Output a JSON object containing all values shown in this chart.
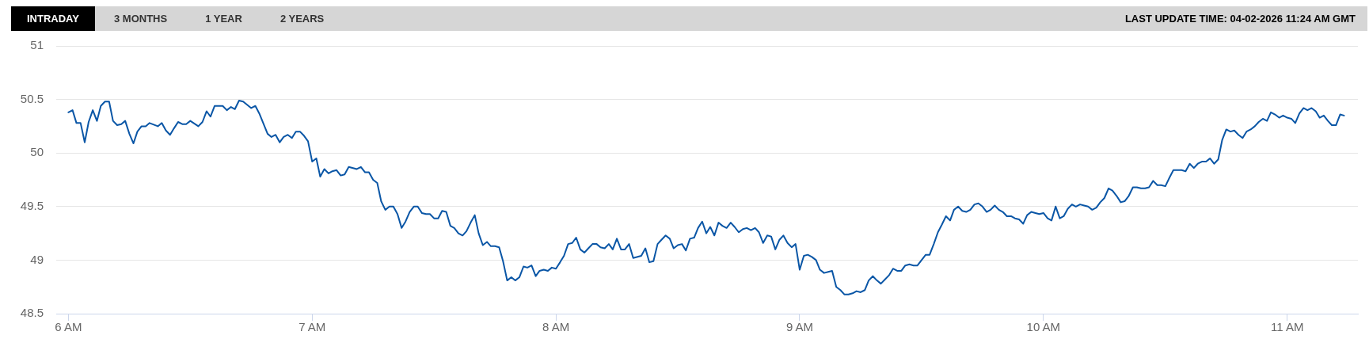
{
  "chart_data": {
    "type": "line",
    "subtitle": "LAST UPDATE TIME: 04-02-2026 11:24 AM GMT",
    "annotations": [
      "INTRADAY",
      "3 MONTHS",
      "1 YEAR",
      "2 YEARS"
    ],
    "x": [
      6,
      6.017,
      6.033,
      6.05,
      6.067,
      6.083,
      6.1,
      6.117,
      6.133,
      6.15,
      6.167,
      6.183,
      6.2,
      6.217,
      6.233,
      6.25,
      6.267,
      6.283,
      6.3,
      6.317,
      6.333,
      6.367,
      6.383,
      6.4,
      6.417,
      6.433,
      6.45,
      6.467,
      6.483,
      6.5,
      6.533,
      6.55,
      6.567,
      6.583,
      6.6,
      6.633,
      6.65,
      6.667,
      6.683,
      6.7,
      6.717,
      6.75,
      6.767,
      6.783,
      6.817,
      6.833,
      6.85,
      6.867,
      6.883,
      6.9,
      6.917,
      6.933,
      6.95,
      6.967,
      6.983,
      7,
      7.017,
      7.033,
      7.05,
      7.067,
      7.083,
      7.1,
      7.117,
      7.133,
      7.15,
      7.183,
      7.2,
      7.217,
      7.233,
      7.25,
      7.267,
      7.283,
      7.3,
      7.317,
      7.333,
      7.35,
      7.367,
      7.383,
      7.4,
      7.417,
      7.433,
      7.45,
      7.467,
      7.483,
      7.5,
      7.517,
      7.533,
      7.55,
      7.567,
      7.583,
      7.6,
      7.617,
      7.633,
      7.65,
      7.667,
      7.683,
      7.7,
      7.717,
      7.733,
      7.75,
      7.767,
      7.783,
      7.8,
      7.817,
      7.833,
      7.85,
      7.867,
      7.883,
      7.9,
      7.917,
      7.933,
      7.95,
      7.967,
      7.983,
      8,
      8.017,
      8.033,
      8.05,
      8.067,
      8.083,
      8.1,
      8.117,
      8.133,
      8.15,
      8.167,
      8.183,
      8.2,
      8.217,
      8.233,
      8.25,
      8.267,
      8.283,
      8.3,
      8.317,
      8.35,
      8.367,
      8.383,
      8.4,
      8.417,
      8.433,
      8.45,
      8.467,
      8.483,
      8.5,
      8.517,
      8.533,
      8.55,
      8.567,
      8.583,
      8.6,
      8.617,
      8.633,
      8.65,
      8.667,
      8.683,
      8.7,
      8.717,
      8.733,
      8.75,
      8.767,
      8.783,
      8.8,
      8.817,
      8.833,
      8.85,
      8.867,
      8.883,
      8.9,
      8.917,
      8.933,
      8.95,
      8.967,
      8.983,
      9,
      9.017,
      9.033,
      9.05,
      9.067,
      9.083,
      9.1,
      9.117,
      9.133,
      9.15,
      9.167,
      9.183,
      9.2,
      9.217,
      9.233,
      9.25,
      9.267,
      9.283,
      9.3,
      9.317,
      9.333,
      9.35,
      9.367,
      9.383,
      9.4,
      9.417,
      9.433,
      9.45,
      9.467,
      9.483,
      9.5,
      9.517,
      9.533,
      9.55,
      9.567,
      9.583,
      9.6,
      9.617,
      9.633,
      9.65,
      9.667,
      9.683,
      9.7,
      9.717,
      9.733,
      9.75,
      9.767,
      9.783,
      9.8,
      9.817,
      9.833,
      9.85,
      9.867,
      9.883,
      9.9,
      9.917,
      9.933,
      9.95,
      9.967,
      9.983,
      10,
      10.017,
      10.033,
      10.05,
      10.067,
      10.083,
      10.1,
      10.117,
      10.133,
      10.15,
      10.167,
      10.183,
      10.2,
      10.217,
      10.233,
      10.25,
      10.267,
      10.283,
      10.3,
      10.317,
      10.333,
      10.35,
      10.367,
      10.383,
      10.4,
      10.417,
      10.433,
      10.45,
      10.467,
      10.483,
      10.5,
      10.517,
      10.533,
      10.55,
      10.567,
      10.583,
      10.6,
      10.617,
      10.633,
      10.65,
      10.667,
      10.683,
      10.7,
      10.717,
      10.733,
      10.75,
      10.767,
      10.783,
      10.8,
      10.817,
      10.833,
      10.85,
      10.867,
      10.883,
      10.9,
      10.917,
      10.933,
      10.95,
      10.967,
      10.983,
      11,
      11.017,
      11.033,
      11.05,
      11.067,
      11.083,
      11.1,
      11.117,
      11.133,
      11.15,
      11.167,
      11.183,
      11.2,
      11.217,
      11.233
    ],
    "series": [
      {
        "color": "#0a56a6",
        "values": [
          50.38,
          50.4,
          50.28,
          50.28,
          50.1,
          50.29,
          50.4,
          50.3,
          50.44,
          50.48,
          50.48,
          50.3,
          50.26,
          50.27,
          50.3,
          50.18,
          50.09,
          50.2,
          50.25,
          50.25,
          50.28,
          50.25,
          50.28,
          50.21,
          50.17,
          50.23,
          50.29,
          50.27,
          50.27,
          50.3,
          50.25,
          50.29,
          50.39,
          50.34,
          50.44,
          50.44,
          50.4,
          50.43,
          50.41,
          50.49,
          50.48,
          50.42,
          50.44,
          50.37,
          50.18,
          50.15,
          50.17,
          50.1,
          50.15,
          50.17,
          50.14,
          50.2,
          50.2,
          50.16,
          50.11,
          49.92,
          49.95,
          49.78,
          49.85,
          49.81,
          49.83,
          49.84,
          49.79,
          49.8,
          49.87,
          49.85,
          49.87,
          49.82,
          49.82,
          49.75,
          49.72,
          49.55,
          49.47,
          49.5,
          49.5,
          49.43,
          49.3,
          49.36,
          49.45,
          49.5,
          49.5,
          49.44,
          49.43,
          49.43,
          49.39,
          49.39,
          49.46,
          49.45,
          49.32,
          49.3,
          49.25,
          49.23,
          49.27,
          49.35,
          49.42,
          49.25,
          49.14,
          49.17,
          49.13,
          49.13,
          49.12,
          48.99,
          48.81,
          48.84,
          48.81,
          48.84,
          48.94,
          48.93,
          48.95,
          48.85,
          48.9,
          48.91,
          48.9,
          48.93,
          48.92,
          48.98,
          49.04,
          49.15,
          49.16,
          49.21,
          49.1,
          49.07,
          49.11,
          49.15,
          49.15,
          49.12,
          49.11,
          49.15,
          49.1,
          49.2,
          49.1,
          49.1,
          49.15,
          49.02,
          49.04,
          49.11,
          48.98,
          48.99,
          49.15,
          49.19,
          49.23,
          49.2,
          49.11,
          49.14,
          49.15,
          49.09,
          49.2,
          49.21,
          49.3,
          49.36,
          49.25,
          49.31,
          49.23,
          49.35,
          49.32,
          49.3,
          49.35,
          49.31,
          49.26,
          49.29,
          49.3,
          49.28,
          49.3,
          49.26,
          49.16,
          49.23,
          49.22,
          49.1,
          49.19,
          49.23,
          49.16,
          49.12,
          49.15,
          48.91,
          49.04,
          49.05,
          49.03,
          49.0,
          48.91,
          48.88,
          48.89,
          48.9,
          48.75,
          48.72,
          48.68,
          48.68,
          48.69,
          48.71,
          48.7,
          48.72,
          48.81,
          48.85,
          48.81,
          48.78,
          48.82,
          48.86,
          48.92,
          48.9,
          48.9,
          48.95,
          48.96,
          48.95,
          48.95,
          49.0,
          49.05,
          49.05,
          49.15,
          49.26,
          49.33,
          49.41,
          49.37,
          49.47,
          49.5,
          49.46,
          49.45,
          49.47,
          49.52,
          49.53,
          49.5,
          49.45,
          49.47,
          49.51,
          49.47,
          49.45,
          49.41,
          49.41,
          49.39,
          49.38,
          49.34,
          49.42,
          49.45,
          49.44,
          49.43,
          49.44,
          49.39,
          49.37,
          49.5,
          49.39,
          49.41,
          49.48,
          49.52,
          49.5,
          49.52,
          49.51,
          49.5,
          49.47,
          49.49,
          49.54,
          49.58,
          49.67,
          49.65,
          49.6,
          49.54,
          49.55,
          49.6,
          49.68,
          49.68,
          49.67,
          49.67,
          49.68,
          49.74,
          49.7,
          49.7,
          49.69,
          49.77,
          49.84,
          49.84,
          49.84,
          49.83,
          49.9,
          49.86,
          49.9,
          49.92,
          49.92,
          49.95,
          49.9,
          49.94,
          50.12,
          50.22,
          50.2,
          50.21,
          50.17,
          50.14,
          50.2,
          50.22,
          50.25,
          50.29,
          50.32,
          50.3,
          50.38,
          50.36,
          50.33,
          50.35,
          50.33,
          50.32,
          50.28,
          50.37,
          50.42,
          50.4,
          50.42,
          50.39,
          50.33,
          50.35,
          50.3,
          50.26,
          50.26,
          50.36,
          50.35
        ]
      }
    ],
    "xlim": [
      5.95,
      11.29
    ],
    "ylim": [
      48.5,
      51
    ],
    "xticks": [
      {
        "value": 6,
        "label": "6 AM"
      },
      {
        "value": 7,
        "label": "7 AM"
      },
      {
        "value": 8,
        "label": "8 AM"
      },
      {
        "value": 9,
        "label": "9 AM"
      },
      {
        "value": 10,
        "label": "10 AM"
      },
      {
        "value": 11,
        "label": "11 AM"
      }
    ],
    "yticks": [
      48.5,
      49,
      49.5,
      50,
      50.5,
      51
    ],
    "grid": "y"
  }
}
